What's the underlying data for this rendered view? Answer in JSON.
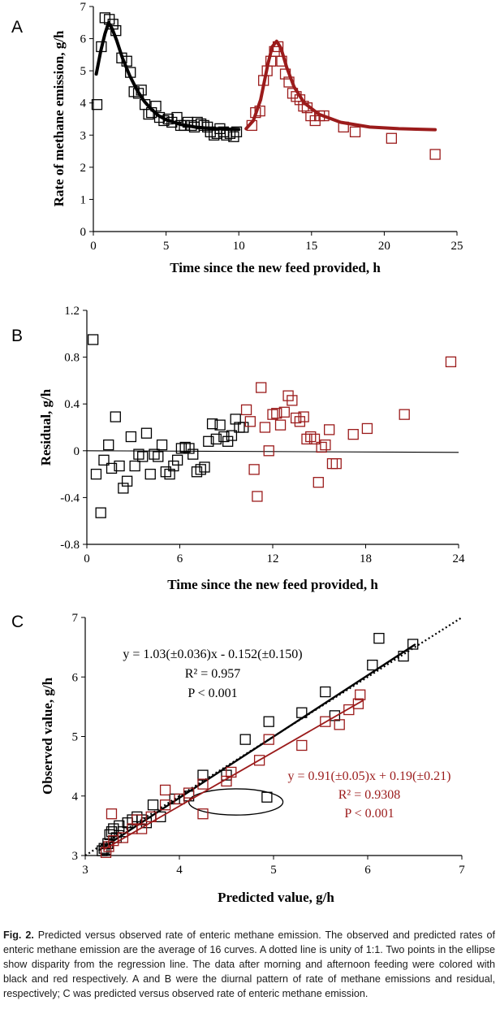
{
  "colors": {
    "morning": "#000000",
    "afternoon": "#9b1b1b"
  },
  "panels": {
    "a": "A",
    "b": "B",
    "c": "C"
  },
  "caption": {
    "label": "Fig. 2.",
    "text": "Predicted versus observed rate of enteric methane emission. The observed and predicted rates of enteric methane emission are the average of 16 curves. A dotted line is unity of 1:1. Two points in the ellipse show disparity from the regression line. The data after morning and afternoon feeding were colored with black and red respectively. A and B were the diurnal pattern of rate of methane emissions and residual, respectively; C was predicted versus observed rate of enteric methane emission."
  },
  "chart_data": [
    {
      "panel": "A",
      "type": "scatter",
      "xlabel": "Time since the new feed provided, h",
      "ylabel": "Rate of methane emission, g/h",
      "xlim": [
        0,
        25
      ],
      "ylim": [
        0,
        7
      ],
      "xticks": [
        0,
        5,
        10,
        15,
        20,
        25
      ],
      "yticks": [
        0,
        1,
        2,
        3,
        4,
        5,
        6,
        7
      ],
      "series": [
        {
          "color": "#000000",
          "observed": [
            [
              0.25,
              3.95
            ],
            [
              0.55,
              5.75
            ],
            [
              0.8,
              6.65
            ],
            [
              1.1,
              6.6
            ],
            [
              1.35,
              6.45
            ],
            [
              1.55,
              6.25
            ],
            [
              1.95,
              5.4
            ],
            [
              2.3,
              5.3
            ],
            [
              2.55,
              4.95
            ],
            [
              2.8,
              4.35
            ],
            [
              3.1,
              4.3
            ],
            [
              3.3,
              4.4
            ],
            [
              3.55,
              3.95
            ],
            [
              3.8,
              3.65
            ],
            [
              4.0,
              3.7
            ],
            [
              4.3,
              3.9
            ],
            [
              4.55,
              3.55
            ],
            [
              4.85,
              3.45
            ],
            [
              5.15,
              3.5
            ],
            [
              5.4,
              3.4
            ],
            [
              5.75,
              3.55
            ],
            [
              6.0,
              3.3
            ],
            [
              6.25,
              3.3
            ],
            [
              6.5,
              3.4
            ],
            [
              6.75,
              3.3
            ],
            [
              6.95,
              3.25
            ],
            [
              7.15,
              3.4
            ],
            [
              7.4,
              3.35
            ],
            [
              7.6,
              3.3
            ],
            [
              7.85,
              3.25
            ],
            [
              8.05,
              3.1
            ],
            [
              8.3,
              3.0
            ],
            [
              8.5,
              3.05
            ],
            [
              8.7,
              3.2
            ],
            [
              8.95,
              3.1
            ],
            [
              9.15,
              3.0
            ],
            [
              9.4,
              3.05
            ],
            [
              9.65,
              2.95
            ],
            [
              9.85,
              3.1
            ]
          ],
          "fitted": [
            [
              0.2,
              4.9
            ],
            [
              0.5,
              5.6
            ],
            [
              0.8,
              6.15
            ],
            [
              1.05,
              6.5
            ],
            [
              1.3,
              6.3
            ],
            [
              1.6,
              5.95
            ],
            [
              2.0,
              5.4
            ],
            [
              2.5,
              4.85
            ],
            [
              3.0,
              4.4
            ],
            [
              3.5,
              4.05
            ],
            [
              4.0,
              3.8
            ],
            [
              4.5,
              3.6
            ],
            [
              5.0,
              3.48
            ],
            [
              6.0,
              3.33
            ],
            [
              7.0,
              3.25
            ],
            [
              8.0,
              3.21
            ],
            [
              9.0,
              3.19
            ],
            [
              10.0,
              3.18
            ]
          ]
        },
        {
          "color": "#9b1b1b",
          "observed": [
            [
              10.9,
              3.3
            ],
            [
              11.15,
              3.7
            ],
            [
              11.45,
              3.75
            ],
            [
              11.7,
              4.7
            ],
            [
              11.95,
              5.0
            ],
            [
              12.2,
              5.3
            ],
            [
              12.45,
              5.6
            ],
            [
              12.7,
              5.75
            ],
            [
              12.95,
              5.3
            ],
            [
              13.2,
              4.9
            ],
            [
              13.45,
              4.65
            ],
            [
              13.7,
              4.3
            ],
            [
              13.95,
              4.2
            ],
            [
              14.2,
              4.1
            ],
            [
              14.45,
              3.9
            ],
            [
              14.7,
              3.85
            ],
            [
              14.95,
              3.6
            ],
            [
              15.25,
              3.45
            ],
            [
              15.55,
              3.6
            ],
            [
              15.85,
              3.6
            ],
            [
              17.2,
              3.25
            ],
            [
              18.0,
              3.1
            ],
            [
              20.5,
              2.9
            ],
            [
              23.5,
              2.4
            ]
          ],
          "fitted": [
            [
              10.5,
              3.2
            ],
            [
              11.0,
              3.45
            ],
            [
              11.5,
              4.1
            ],
            [
              12.0,
              5.2
            ],
            [
              12.3,
              5.75
            ],
            [
              12.6,
              5.92
            ],
            [
              12.9,
              5.7
            ],
            [
              13.3,
              5.1
            ],
            [
              13.8,
              4.5
            ],
            [
              14.5,
              4.0
            ],
            [
              15.5,
              3.65
            ],
            [
              17.0,
              3.4
            ],
            [
              19.0,
              3.25
            ],
            [
              21.0,
              3.2
            ],
            [
              23.5,
              3.17
            ]
          ]
        }
      ]
    },
    {
      "panel": "B",
      "type": "scatter",
      "xlabel": "Time since the new feed provided, h",
      "ylabel": "Residual, g/h",
      "xlim": [
        0,
        24
      ],
      "ylim": [
        -0.8,
        1.2
      ],
      "xticks": [
        0,
        6,
        12,
        18,
        24
      ],
      "yticks": [
        -0.8,
        -0.4,
        0,
        0.4,
        0.8,
        1.2
      ],
      "ytick_labels": [
        "-0.8",
        "-0.4",
        "0",
        "0.4",
        "0.8",
        "1.2"
      ],
      "zero_line": true,
      "series": [
        {
          "color": "#000000",
          "points": [
            [
              0.4,
              0.95
            ],
            [
              0.6,
              -0.2
            ],
            [
              0.9,
              -0.53
            ],
            [
              1.1,
              -0.08
            ],
            [
              1.4,
              0.05
            ],
            [
              1.6,
              -0.15
            ],
            [
              1.85,
              0.29
            ],
            [
              2.1,
              -0.13
            ],
            [
              2.35,
              -0.32
            ],
            [
              2.6,
              -0.26
            ],
            [
              2.85,
              0.12
            ],
            [
              3.1,
              -0.13
            ],
            [
              3.35,
              -0.03
            ],
            [
              3.6,
              -0.05
            ],
            [
              3.85,
              0.15
            ],
            [
              4.1,
              -0.2
            ],
            [
              4.35,
              -0.03
            ],
            [
              4.6,
              -0.05
            ],
            [
              4.85,
              0.05
            ],
            [
              5.1,
              -0.18
            ],
            [
              5.35,
              -0.2
            ],
            [
              5.6,
              -0.13
            ],
            [
              5.85,
              -0.08
            ],
            [
              6.1,
              0.02
            ],
            [
              6.35,
              0.03
            ],
            [
              6.6,
              0.02
            ],
            [
              6.85,
              -0.03
            ],
            [
              7.1,
              -0.18
            ],
            [
              7.35,
              -0.16
            ],
            [
              7.6,
              -0.14
            ],
            [
              7.85,
              0.08
            ],
            [
              8.1,
              0.23
            ],
            [
              8.35,
              0.1
            ],
            [
              8.6,
              0.22
            ],
            [
              8.85,
              0.12
            ],
            [
              9.1,
              0.08
            ],
            [
              9.35,
              0.13
            ],
            [
              9.6,
              0.27
            ],
            [
              9.85,
              0.2
            ],
            [
              10.1,
              0.2
            ]
          ]
        },
        {
          "color": "#9b1b1b",
          "points": [
            [
              10.3,
              0.35
            ],
            [
              10.55,
              0.25
            ],
            [
              10.8,
              -0.16
            ],
            [
              11.0,
              -0.39
            ],
            [
              11.25,
              0.54
            ],
            [
              11.5,
              0.2
            ],
            [
              11.75,
              0.0
            ],
            [
              12.0,
              0.31
            ],
            [
              12.25,
              0.32
            ],
            [
              12.5,
              0.22
            ],
            [
              12.75,
              0.33
            ],
            [
              13.0,
              0.47
            ],
            [
              13.25,
              0.43
            ],
            [
              13.5,
              0.28
            ],
            [
              13.75,
              0.25
            ],
            [
              14.0,
              0.29
            ],
            [
              14.2,
              0.1
            ],
            [
              14.45,
              0.12
            ],
            [
              14.7,
              0.1
            ],
            [
              14.95,
              -0.27
            ],
            [
              15.15,
              0.03
            ],
            [
              15.4,
              0.05
            ],
            [
              15.65,
              0.18
            ],
            [
              15.85,
              -0.11
            ],
            [
              16.1,
              -0.11
            ],
            [
              17.2,
              0.14
            ],
            [
              18.1,
              0.19
            ],
            [
              20.5,
              0.31
            ],
            [
              23.5,
              0.76
            ]
          ]
        }
      ]
    },
    {
      "panel": "C",
      "type": "scatter",
      "xlabel": "Predicted value, g/h",
      "ylabel": "Observed value, g/h",
      "xlim": [
        3,
        7
      ],
      "ylim": [
        3,
        7
      ],
      "xticks": [
        3,
        4,
        5,
        6,
        7
      ],
      "yticks": [
        3,
        4,
        5,
        6,
        7
      ],
      "unity_line": {
        "style": "dotted",
        "from": [
          3,
          3
        ],
        "to": [
          7,
          7
        ]
      },
      "ellipse": {
        "center": [
          4.6,
          3.9
        ],
        "radius": [
          0.5,
          0.22
        ]
      },
      "series": [
        {
          "color": "#000000",
          "equation": {
            "line1": "y = 1.03(±0.036)x - 0.152(±0.150)",
            "line2": "R² = 0.957",
            "line3": "P < 0.001"
          },
          "regression": {
            "slope": 1.03,
            "intercept": -0.152,
            "x_range": [
              3.15,
              6.5
            ]
          },
          "points": [
            [
              3.18,
              3.08
            ],
            [
              3.2,
              3.12
            ],
            [
              3.22,
              3.1
            ],
            [
              3.24,
              3.2
            ],
            [
              3.26,
              3.35
            ],
            [
              3.28,
              3.4
            ],
            [
              3.3,
              3.45
            ],
            [
              3.33,
              3.3
            ],
            [
              3.36,
              3.5
            ],
            [
              3.4,
              3.4
            ],
            [
              3.45,
              3.55
            ],
            [
              3.5,
              3.6
            ],
            [
              3.55,
              3.65
            ],
            [
              3.6,
              3.6
            ],
            [
              3.65,
              3.55
            ],
            [
              3.72,
              3.85
            ],
            [
              3.8,
              3.65
            ],
            [
              3.95,
              3.95
            ],
            [
              4.1,
              4.0
            ],
            [
              4.25,
              4.35
            ],
            [
              4.5,
              4.35
            ],
            [
              4.7,
              4.95
            ],
            [
              4.95,
              5.25
            ],
            [
              5.3,
              5.4
            ],
            [
              5.55,
              5.75
            ],
            [
              5.65,
              5.35
            ],
            [
              6.05,
              6.2
            ],
            [
              6.12,
              6.65
            ],
            [
              6.38,
              6.35
            ],
            [
              6.48,
              6.55
            ],
            [
              4.93,
              3.98
            ]
          ]
        },
        {
          "color": "#9b1b1b",
          "equation": {
            "line1": "y = 0.91(±0.05)x + 0.19(±0.21)",
            "line2": "R² = 0.9308",
            "line3": "P < 0.001"
          },
          "regression": {
            "slope": 0.91,
            "intercept": 0.19,
            "x_range": [
              3.2,
              5.95
            ]
          },
          "points": [
            [
              3.22,
              3.05
            ],
            [
              3.25,
              3.15
            ],
            [
              3.3,
              3.25
            ],
            [
              3.28,
              3.7
            ],
            [
              3.4,
              3.3
            ],
            [
              3.5,
              3.45
            ],
            [
              3.55,
              3.6
            ],
            [
              3.6,
              3.45
            ],
            [
              3.7,
              3.65
            ],
            [
              3.85,
              3.85
            ],
            [
              3.85,
              4.1
            ],
            [
              4.0,
              3.95
            ],
            [
              4.1,
              4.05
            ],
            [
              4.25,
              4.2
            ],
            [
              4.25,
              3.7
            ],
            [
              4.5,
              4.25
            ],
            [
              4.55,
              4.4
            ],
            [
              4.85,
              4.6
            ],
            [
              4.95,
              4.95
            ],
            [
              5.3,
              4.85
            ],
            [
              5.55,
              5.25
            ],
            [
              5.7,
              5.2
            ],
            [
              5.8,
              5.45
            ],
            [
              5.9,
              5.55
            ],
            [
              5.92,
              5.7
            ]
          ]
        }
      ]
    }
  ]
}
